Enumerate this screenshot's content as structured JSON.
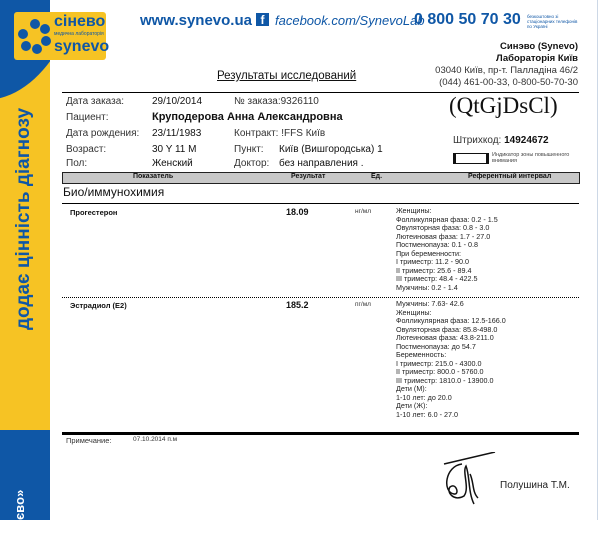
{
  "brand": {
    "logo_top": "сінево",
    "logo_sub": "медична лабораторія",
    "logo_bottom": "synevo",
    "website": "www.synevo.ua",
    "facebook": "facebook.com/SynevoLab",
    "phone": "0 800 50 70 30",
    "phone_note": "безкоштовно зі стаціонарних телефонів по Україні",
    "slogan": "додає цінність діагнозу",
    "strip_bottom": "євo»",
    "colors": {
      "blue": "#0f57a6",
      "yellow": "#f6c324"
    }
  },
  "lab": {
    "name": "Синэво (Synevo)",
    "branch": "Лабораторія Київ",
    "address": "03040 Київ, пр-т. Палладіна  46/2",
    "phones": "(044) 461-00-33, 0-800-50-70-30"
  },
  "title": "Результаты исследований",
  "order": {
    "date_label": "Дата заказа:",
    "date": "29/10/2014",
    "number_label": "№ заказа:",
    "number": "9326110",
    "patient_label": "Пациент:",
    "patient": "Круподерова Анна Александровна",
    "dob_label": "Дата рождения:",
    "dob": "23/11/1983",
    "contract_label": "Контракт:",
    "contract": "!FFS Київ",
    "age_label": "Возраст:",
    "age": "30 Y 11 M",
    "point_label": "Пункт:",
    "point": "Київ (Вишгородська) 1",
    "sex_label": "Пол:",
    "sex": "Женский",
    "doctor_label": "Доктор:",
    "doctor": "без направления ."
  },
  "code": "(QtGjDsCl)",
  "barcode": {
    "label": "Штрихкод:",
    "value": "14924672"
  },
  "indicator": "Индикатор зоны повышенного внимания",
  "table": {
    "headers": [
      "Показатель",
      "Результат",
      "Ед.",
      "Референтный интервал"
    ],
    "section": "Био/иммунохимия",
    "rows": [
      {
        "name": "Прогестерон",
        "result": "18.09",
        "unit": "нг/мл",
        "ref": [
          "Женщины:",
          "Фолликулярная фаза: 0.2 - 1.5",
          "Овуляторная фаза: 0.8 - 3.0",
          "Лютеиновая фаза: 1.7 - 27.0",
          "Постменопауза: 0.1 - 0.8",
          "При беременности:",
          "I триместр: 11.2 - 90.0",
          "II триместр: 25.6 - 89.4",
          "III триместр: 48.4 - 422.5",
          "Мужчины: 0.2 - 1.4"
        ]
      },
      {
        "name": "Эстрадиол (E2)",
        "result": "185.2",
        "unit": "пг/мл",
        "ref": [
          "Мужчины: 7.63- 42.6",
          "Женщины:",
          "Фолликулярная фаза: 12.5-166.0",
          "Овуляторная фаза: 85.8-498.0",
          "Лютеиновая фаза: 43.8-211.0",
          "Постменопауза: до 54.7",
          "Беременность:",
          "I триместр: 215.0 - 4300.0",
          "II триместр: 800.0 - 5760.0",
          "III триместр: 1810.0 - 13900.0",
          "Дети (М):",
          "1-10 лет: до 20.0",
          "Дети (Ж):",
          "1-10 лет: 6.0 - 27.0"
        ]
      }
    ]
  },
  "note": {
    "label": "Примечание:",
    "value": "07.10.2014 п.м"
  },
  "signer": "Полушина Т.М."
}
